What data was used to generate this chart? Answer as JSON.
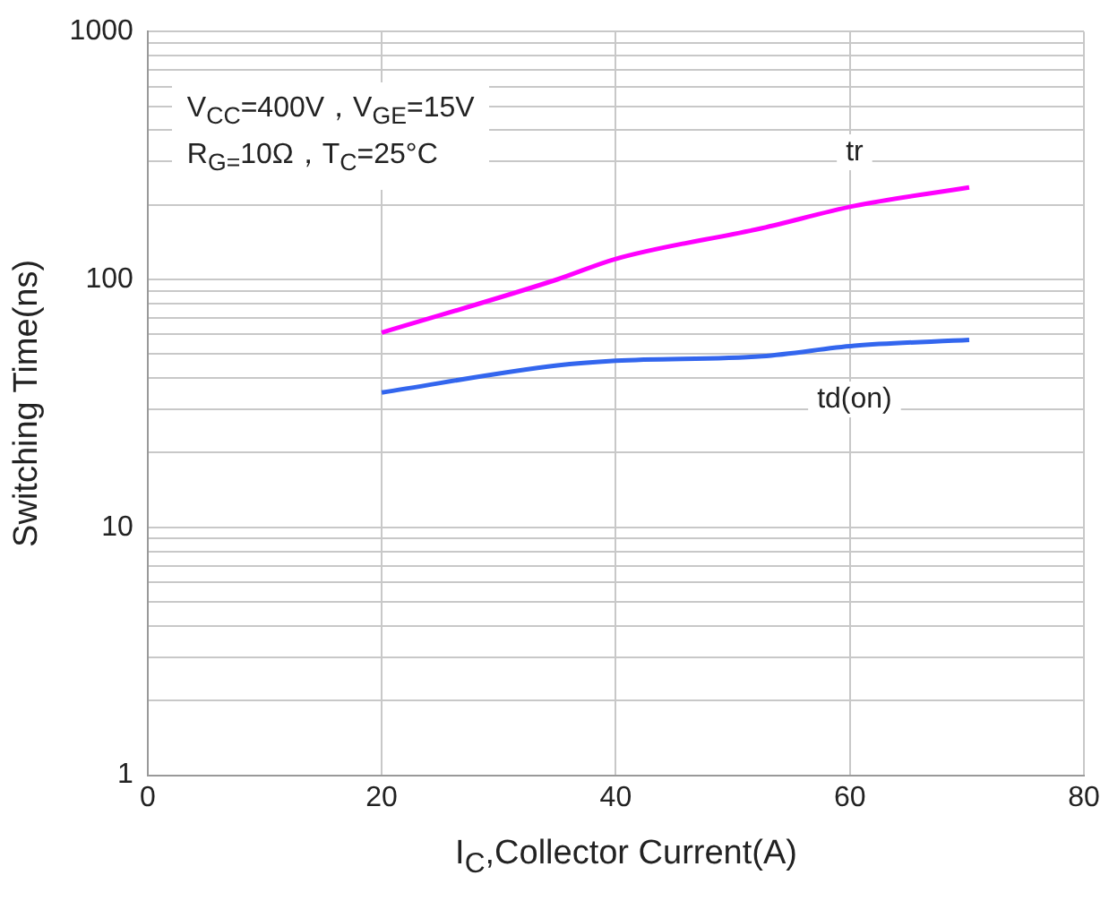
{
  "chart_data": {
    "type": "line",
    "xlabel": "I$_{C}$,Collector Current(A)",
    "ylabel": "Switching Time(ns)",
    "log": "y",
    "xlim": [
      0,
      80
    ],
    "xticks": [
      0,
      20,
      40,
      60,
      80
    ],
    "ylim": [
      1,
      1000
    ],
    "yticks": [
      1,
      {
        "value": 2,
        "label": null
      },
      {
        "value": 3,
        "label": null
      },
      {
        "value": 4,
        "label": null
      },
      {
        "value": 5,
        "label": null
      },
      {
        "value": 6,
        "label": null
      },
      {
        "value": 7,
        "label": null
      },
      {
        "value": 8,
        "label": null
      },
      {
        "value": 9,
        "label": null
      },
      10,
      {
        "value": 20,
        "label": null
      },
      {
        "value": 30,
        "label": null
      },
      {
        "value": 40,
        "label": null
      },
      {
        "value": 50,
        "label": null
      },
      {
        "value": 60,
        "label": null
      },
      {
        "value": 70,
        "label": null
      },
      {
        "value": 80,
        "label": null
      },
      {
        "value": 90,
        "label": null
      },
      100,
      {
        "value": 200,
        "label": null
      },
      {
        "value": 300,
        "label": null
      },
      {
        "value": 400,
        "label": null
      },
      {
        "value": 500,
        "label": null
      },
      {
        "value": 600,
        "label": null
      },
      {
        "value": 700,
        "label": null
      },
      {
        "value": 800,
        "label": null
      },
      {
        "value": 900,
        "label": null
      },
      1000
    ],
    "grid": true,
    "legend": false,
    "marker": "none",
    "line_style": "solid",
    "series": [
      {
        "color": "#ff00ff",
        "x": [
          20,
          35,
          40,
          52.5,
          60.4,
          70.2
        ],
        "values": [
          61,
          100,
          121,
          161,
          198,
          235
        ]
      },
      {
        "color": "#3366ee",
        "x": [
          20,
          35,
          40,
          52.5,
          60.4,
          70.2
        ],
        "values": [
          35,
          45,
          47,
          49,
          54,
          57
        ]
      }
    ],
    "annotations": [
      "V$_{CC}$=400V，V$_{GE}$=15V\nR$_{G=}$10Ω，T$_{C}$=25°C",
      {
        "text": "tr",
        "x": 60.4,
        "y": 198
      },
      {
        "text": "td(on)",
        "x": 60.4,
        "y": 54
      }
    ]
  }
}
